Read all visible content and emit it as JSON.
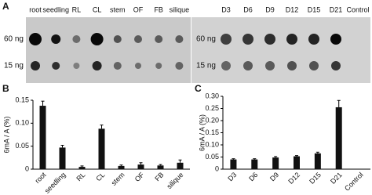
{
  "panels": [
    {
      "label": "A",
      "columns": [
        "root",
        "seedling",
        "RL",
        "CL",
        "stem",
        "OF",
        "FB",
        "silique"
      ],
      "rows": [
        "60 ng",
        "15 ng"
      ]
    },
    {
      "columns": [
        "D3",
        "D6",
        "D9",
        "D12",
        "D15",
        "D21",
        "Control"
      ],
      "rows": [
        "60 ng",
        "15 ng"
      ]
    }
  ],
  "chart_data": [
    {
      "type": "bar",
      "panel": "B",
      "y_label": "6mA / A (%)",
      "categories": [
        "root",
        "seedling",
        "RL",
        "CL",
        "stem",
        "OF",
        "FB",
        "silique"
      ],
      "values": [
        0.138,
        0.047,
        0.005,
        0.088,
        0.007,
        0.01,
        0.008,
        0.014
      ],
      "errors": [
        0.01,
        0.005,
        0.002,
        0.008,
        0.002,
        0.004,
        0.002,
        0.006
      ],
      "color": "#111111",
      "ylim": [
        0,
        0.15
      ],
      "yticks": [
        0,
        0.05,
        {
          "value": 0.1,
          "label": "0.10"
        },
        0.15
      ]
    },
    {
      "type": "bar",
      "panel": "C",
      "y_label": "6mA / A (%)",
      "categories": [
        "D3",
        "D6",
        "D9",
        "D12",
        "D15",
        "D21",
        "Control"
      ],
      "values": [
        0.04,
        0.04,
        0.048,
        0.053,
        0.065,
        0.255,
        0
      ],
      "errors": [
        0.003,
        0.003,
        0.004,
        0.003,
        0.005,
        0.028,
        0
      ],
      "color": "#111111",
      "ylim": [
        0,
        0.3
      ],
      "yticks": [
        0,
        0.05,
        {
          "value": 0.1,
          "label": "0.10"
        },
        0.15,
        {
          "value": 0.2,
          "label": "0.20"
        },
        0.25,
        {
          "value": 0.3,
          "label": "0.30"
        }
      ]
    }
  ]
}
